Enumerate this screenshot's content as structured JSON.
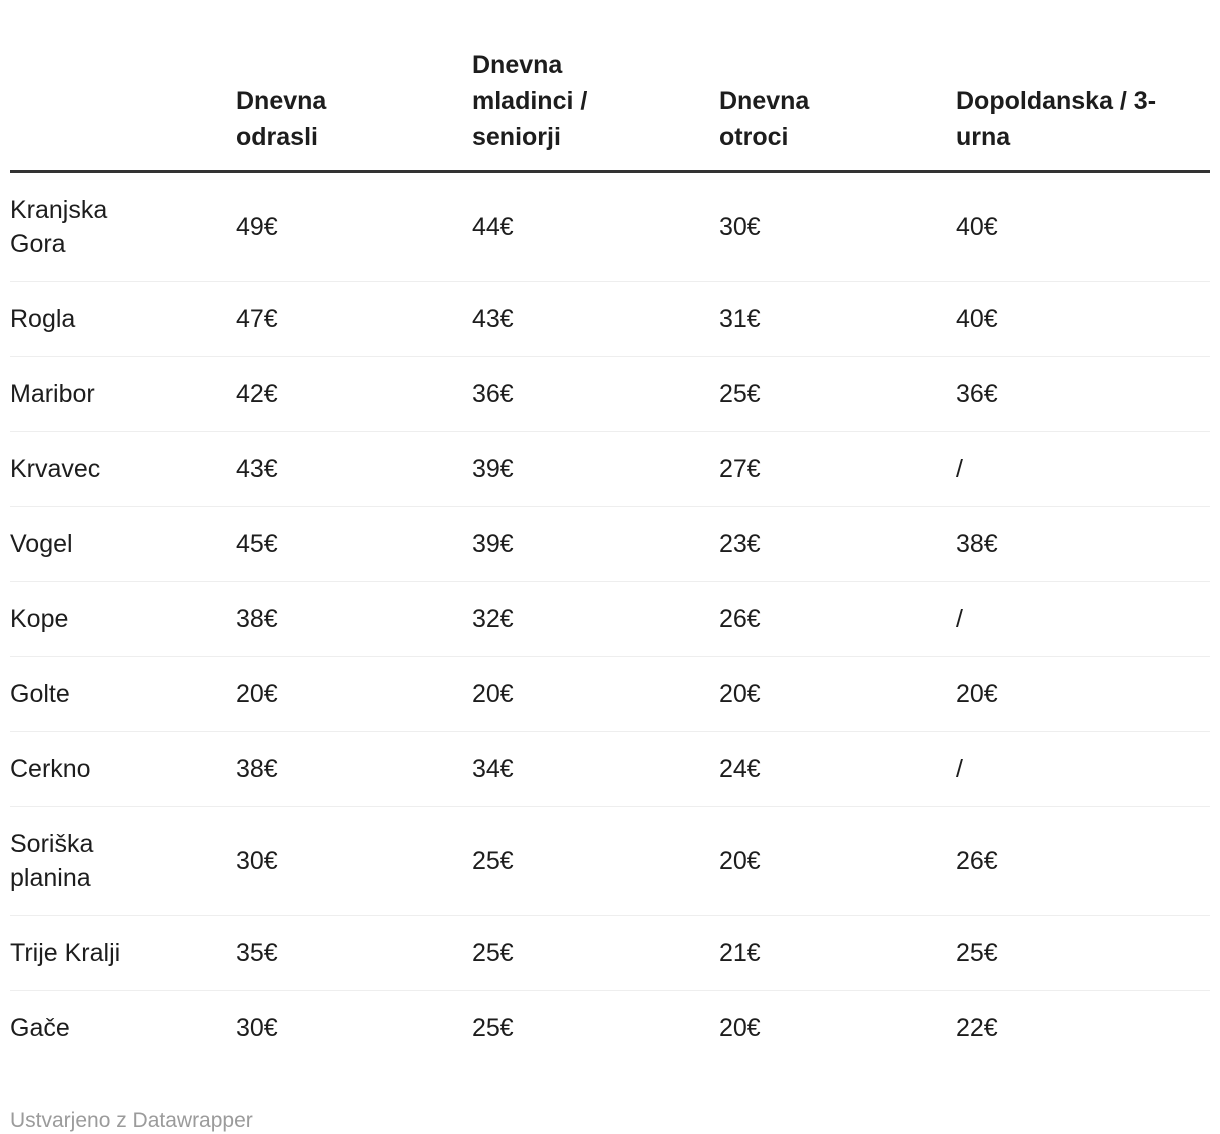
{
  "chart_data": {
    "type": "table",
    "title": "",
    "columns": [
      "",
      "Dnevna odrasli",
      "Dnevna mladinci / seniorji",
      "Dnevna otroci",
      "Dopoldanska / 3-urna"
    ],
    "rows": [
      [
        "Kranjska Gora",
        "49€",
        "44€",
        "30€",
        "40€"
      ],
      [
        "Rogla",
        "47€",
        "43€",
        "31€",
        "40€"
      ],
      [
        "Maribor",
        "42€",
        "36€",
        "25€",
        "36€"
      ],
      [
        "Krvavec",
        "43€",
        "39€",
        "27€",
        "/"
      ],
      [
        "Vogel",
        "45€",
        "39€",
        "23€",
        "38€"
      ],
      [
        "Kope",
        "38€",
        "32€",
        "26€",
        "/"
      ],
      [
        "Golte",
        "20€",
        "20€",
        "20€",
        "20€"
      ],
      [
        "Cerkno",
        "38€",
        "34€",
        "24€",
        "/"
      ],
      [
        "Soriška planina",
        "30€",
        "25€",
        "20€",
        "26€"
      ],
      [
        "Trije Kralji",
        "35€",
        "25€",
        "21€",
        "25€"
      ],
      [
        "Gače",
        "30€",
        "25€",
        "20€",
        "22€"
      ]
    ],
    "layout_hints": {
      "header_divider": "thick",
      "row_dividers": "light",
      "value_alignment": "left"
    }
  },
  "header_display": {
    "corner": "",
    "adult": "Dnevna\nodrasli",
    "youth": "Dnevna\nmladinci /\nseniorji",
    "child": "Dnevna\notroci",
    "morning": "Dopoldanska / 3-\nurna"
  },
  "footer": {
    "attribution": "Ustvarjeno z Datawrapper"
  },
  "colors": {
    "background": "#ffffff",
    "text": "#1d1d1d",
    "header_border": "#333333",
    "row_border": "#eeeeee",
    "footer_text": "#9b9b9b"
  }
}
